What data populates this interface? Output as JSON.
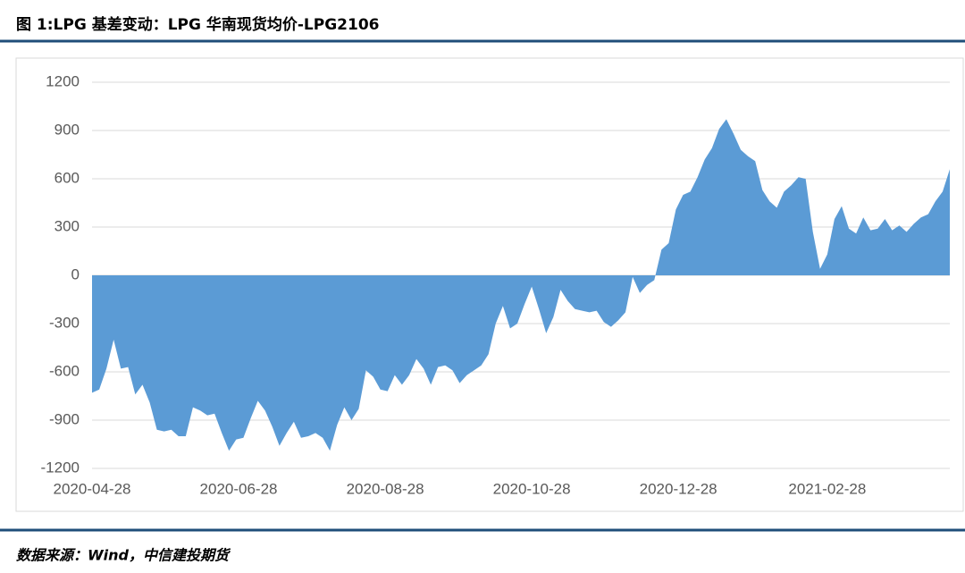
{
  "chart_data": {
    "type": "area",
    "title": "图 1:LPG 基差变动：LPG 华南现货均价-LPG2106",
    "source": "数据来源：Wind，中信建投期货",
    "color": "#5b9bd5",
    "grid": true,
    "x": [
      "2020-04-28",
      "2020-05-01",
      "2020-05-04",
      "2020-05-07",
      "2020-05-10",
      "2020-05-13",
      "2020-05-16",
      "2020-05-19",
      "2020-05-22",
      "2020-05-25",
      "2020-05-28",
      "2020-05-31",
      "2020-06-03",
      "2020-06-06",
      "2020-06-09",
      "2020-06-12",
      "2020-06-15",
      "2020-06-18",
      "2020-06-21",
      "2020-06-24",
      "2020-06-27",
      "2020-06-30",
      "2020-07-03",
      "2020-07-06",
      "2020-07-09",
      "2020-07-12",
      "2020-07-15",
      "2020-07-18",
      "2020-07-21",
      "2020-07-24",
      "2020-07-27",
      "2020-07-30",
      "2020-08-02",
      "2020-08-05",
      "2020-08-08",
      "2020-08-11",
      "2020-08-14",
      "2020-08-17",
      "2020-08-20",
      "2020-08-23",
      "2020-08-26",
      "2020-08-29",
      "2020-09-01",
      "2020-09-04",
      "2020-09-07",
      "2020-09-10",
      "2020-09-13",
      "2020-09-16",
      "2020-09-19",
      "2020-09-22",
      "2020-09-25",
      "2020-09-28",
      "2020-10-01",
      "2020-10-04",
      "2020-10-07",
      "2020-10-10",
      "2020-10-13",
      "2020-10-16",
      "2020-10-19",
      "2020-10-22",
      "2020-10-25",
      "2020-10-28",
      "2020-10-31",
      "2020-11-03",
      "2020-11-06",
      "2020-11-09",
      "2020-11-12",
      "2020-11-15",
      "2020-11-18",
      "2020-11-21",
      "2020-11-24",
      "2020-11-27",
      "2020-11-30",
      "2020-12-03",
      "2020-12-06",
      "2020-12-09",
      "2020-12-12",
      "2020-12-15",
      "2020-12-18",
      "2020-12-21",
      "2020-12-24",
      "2020-12-27",
      "2020-12-30",
      "2021-01-02",
      "2021-01-05",
      "2021-01-08",
      "2021-01-11",
      "2021-01-14",
      "2021-01-17",
      "2021-01-20",
      "2021-01-23",
      "2021-01-26",
      "2021-01-29",
      "2021-02-01",
      "2021-02-04",
      "2021-02-07",
      "2021-02-10",
      "2021-02-13",
      "2021-02-16",
      "2021-02-19",
      "2021-02-22",
      "2021-02-25",
      "2021-02-28",
      "2021-03-03",
      "2021-03-06",
      "2021-03-09",
      "2021-03-12",
      "2021-03-15",
      "2021-03-18",
      "2021-03-21",
      "2021-03-24",
      "2021-03-27",
      "2021-03-30",
      "2021-04-02",
      "2021-04-05",
      "2021-04-08",
      "2021-04-11",
      "2021-04-14",
      "2021-04-17",
      "2021-04-20"
    ],
    "values": [
      -730,
      -710,
      -580,
      -400,
      -580,
      -570,
      -740,
      -680,
      -790,
      -960,
      -970,
      -960,
      -1000,
      -1000,
      -820,
      -840,
      -870,
      -860,
      -980,
      -1090,
      -1020,
      -1010,
      -890,
      -780,
      -840,
      -940,
      -1060,
      -980,
      -910,
      -1010,
      -1000,
      -980,
      -1010,
      -1090,
      -930,
      -820,
      -900,
      -830,
      -590,
      -630,
      -710,
      -720,
      -620,
      -680,
      -620,
      -520,
      -580,
      -680,
      -570,
      -560,
      -590,
      -670,
      -620,
      -590,
      -560,
      -490,
      -300,
      -190,
      -330,
      -300,
      -180,
      -70,
      -210,
      -360,
      -260,
      -90,
      -160,
      -210,
      -220,
      -230,
      -220,
      -290,
      -320,
      -280,
      -230,
      -10,
      -110,
      -60,
      -30,
      160,
      200,
      410,
      500,
      520,
      610,
      720,
      790,
      910,
      970,
      880,
      780,
      740,
      710,
      530,
      460,
      420,
      520,
      560,
      610,
      600,
      270,
      40,
      130,
      350,
      430,
      290,
      260,
      360,
      280,
      290,
      350,
      280,
      310,
      270,
      320,
      360,
      380,
      460,
      520,
      660
    ],
    "xlim": [
      "2020-04-28",
      "2021-04-20"
    ],
    "xticks": [
      "2020-04-28",
      "2020-06-28",
      "2020-08-28",
      "2020-10-28",
      "2020-12-28",
      "2021-02-28"
    ],
    "ylim": [
      -1200,
      1200
    ],
    "yticks": [
      -1200,
      -900,
      -600,
      -300,
      0,
      300,
      600,
      900,
      1200
    ]
  }
}
